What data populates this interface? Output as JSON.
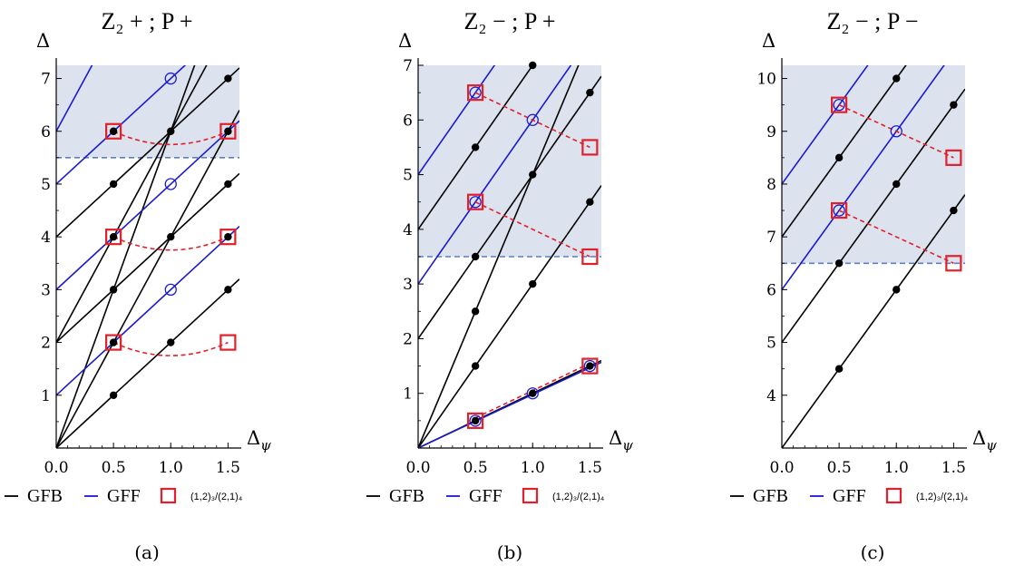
{
  "legend": {
    "gfb_label": "GFB",
    "gff_label": "GFF",
    "square_label": "(1,2)₃/(2,1)₄"
  },
  "colors": {
    "gfb": "#000000",
    "gff": "#1a1ad0",
    "square": "#e0202a",
    "region": "#dde3ee",
    "threshold": "#5b7fc0"
  },
  "chart_data": [
    {
      "type": "line",
      "title": "Z₂ + ; P +",
      "xlabel": "Δ_ψ",
      "ylabel": "Δ",
      "xlim": [
        0,
        1.6
      ],
      "ylim": [
        0,
        7.25
      ],
      "xticks": [
        "0.0",
        "0.5",
        "1.0",
        "1.5"
      ],
      "yticks": [
        "1",
        "2",
        "3",
        "4",
        "5",
        "6",
        "7"
      ],
      "threshold": 5.5,
      "gfb_lines": [
        {
          "b": 0,
          "m": 2
        },
        {
          "b": 2,
          "m": 2
        },
        {
          "b": 4,
          "m": 2
        },
        {
          "b": 0,
          "m": 4
        },
        {
          "b": 2,
          "m": 4
        },
        {
          "b": 0,
          "m": 6
        }
      ],
      "gff_lines": [
        {
          "b": 1,
          "m": 2
        },
        {
          "b": 3,
          "m": 2
        },
        {
          "b": 5,
          "m": 2
        },
        {
          "b": 6,
          "m": 4
        }
      ],
      "gfb_points": [
        [
          0.5,
          1
        ],
        [
          0.5,
          2
        ],
        [
          0.5,
          3
        ],
        [
          0.5,
          4
        ],
        [
          0.5,
          5
        ],
        [
          0.5,
          6
        ],
        [
          1,
          2
        ],
        [
          1,
          4
        ],
        [
          1,
          6
        ],
        [
          1.5,
          3
        ],
        [
          1.5,
          4
        ],
        [
          1.5,
          5
        ],
        [
          1.5,
          6
        ],
        [
          1.5,
          7
        ]
      ],
      "gff_points": [
        [
          1,
          3
        ],
        [
          1,
          5
        ],
        [
          1,
          7
        ]
      ],
      "squares": [
        [
          0.5,
          2
        ],
        [
          0.5,
          4
        ],
        [
          0.5,
          6
        ],
        [
          1.5,
          2
        ],
        [
          1.5,
          4
        ],
        [
          1.5,
          6
        ]
      ],
      "dashed_curves": [
        [
          [
            0.5,
            2
          ],
          [
            1,
            1.75
          ],
          [
            1.5,
            2
          ]
        ],
        [
          [
            0.5,
            4
          ],
          [
            1,
            3.75
          ],
          [
            1.5,
            4
          ]
        ],
        [
          [
            0.5,
            6
          ],
          [
            1,
            5.75
          ],
          [
            1.5,
            6
          ]
        ]
      ],
      "panel_label": "(a)"
    },
    {
      "type": "line",
      "title": "Z₂ − ; P +",
      "xlabel": "Δ_ψ",
      "ylabel": "Δ",
      "xlim": [
        0,
        1.6
      ],
      "ylim": [
        0,
        7
      ],
      "xticks": [
        "0.0",
        "0.5",
        "1.0",
        "1.5"
      ],
      "yticks": [
        "1",
        "2",
        "3",
        "4",
        "5",
        "6",
        "7"
      ],
      "threshold": 3.5,
      "gfb_lines": [
        {
          "b": 0,
          "m": 1
        },
        {
          "b": 0,
          "m": 3
        },
        {
          "b": 0,
          "m": 5
        },
        {
          "b": 2,
          "m": 3
        },
        {
          "b": 4,
          "m": 3
        }
      ],
      "gff_lines": [
        {
          "b": 0,
          "m": 0.98
        },
        {
          "b": 3,
          "m": 3
        },
        {
          "b": 5,
          "m": 3
        }
      ],
      "gfb_points": [
        [
          0.5,
          0.5
        ],
        [
          0.5,
          1.5
        ],
        [
          0.5,
          2.5
        ],
        [
          0.5,
          3.5
        ],
        [
          0.5,
          5.5
        ],
        [
          1,
          1
        ],
        [
          1,
          3
        ],
        [
          1,
          5
        ],
        [
          1,
          7
        ],
        [
          1.5,
          1.5
        ],
        [
          1.5,
          4.5
        ],
        [
          1.5,
          6.5
        ]
      ],
      "gff_points": [
        [
          0.5,
          0.5
        ],
        [
          1,
          1
        ],
        [
          1.5,
          1.5
        ],
        [
          0.5,
          4.5
        ],
        [
          0.5,
          6.5
        ],
        [
          1,
          6
        ]
      ],
      "squares": [
        [
          0.5,
          0.5
        ],
        [
          1.5,
          1.5
        ],
        [
          0.5,
          4.5
        ],
        [
          1.5,
          3.5
        ],
        [
          0.5,
          6.5
        ],
        [
          1.5,
          5.5
        ]
      ],
      "dashed_curves": [
        [
          [
            0.5,
            0.55
          ],
          [
            1.5,
            1.55
          ]
        ],
        [
          [
            0.5,
            4.5
          ],
          [
            1.5,
            3.5
          ]
        ],
        [
          [
            0.5,
            6.5
          ],
          [
            1.5,
            5.5
          ]
        ]
      ],
      "panel_label": "(b)"
    },
    {
      "type": "line",
      "title": "Z₂ − ; P −",
      "xlabel": "Δ_ψ",
      "ylabel": "Δ",
      "xlim": [
        0,
        1.6
      ],
      "ylim": [
        3,
        10.25
      ],
      "xticks": [
        "0.0",
        "0.5",
        "1.0",
        "1.5"
      ],
      "yticks": [
        "4",
        "5",
        "6",
        "7",
        "8",
        "9",
        "10"
      ],
      "threshold": 6.5,
      "gfb_lines": [
        {
          "b": 3,
          "m": 3
        },
        {
          "b": 5,
          "m": 3
        },
        {
          "b": 7,
          "m": 3
        }
      ],
      "gff_lines": [
        {
          "b": 6,
          "m": 3
        },
        {
          "b": 8,
          "m": 3
        }
      ],
      "gfb_points": [
        [
          0.5,
          4.5
        ],
        [
          0.5,
          6.5
        ],
        [
          0.5,
          8.5
        ],
        [
          1,
          6
        ],
        [
          1,
          8
        ],
        [
          1,
          10
        ],
        [
          1.5,
          7.5
        ],
        [
          1.5,
          9.5
        ]
      ],
      "gff_points": [
        [
          0.5,
          7.5
        ],
        [
          0.5,
          9.5
        ],
        [
          1,
          9
        ]
      ],
      "squares": [
        [
          0.5,
          7.5
        ],
        [
          0.5,
          9.5
        ],
        [
          1.5,
          6.5
        ],
        [
          1.5,
          8.5
        ]
      ],
      "dashed_curves": [
        [
          [
            0.5,
            7.5
          ],
          [
            1.5,
            6.5
          ]
        ],
        [
          [
            0.5,
            9.5
          ],
          [
            1.5,
            8.5
          ]
        ]
      ],
      "panel_label": "(c)"
    }
  ]
}
